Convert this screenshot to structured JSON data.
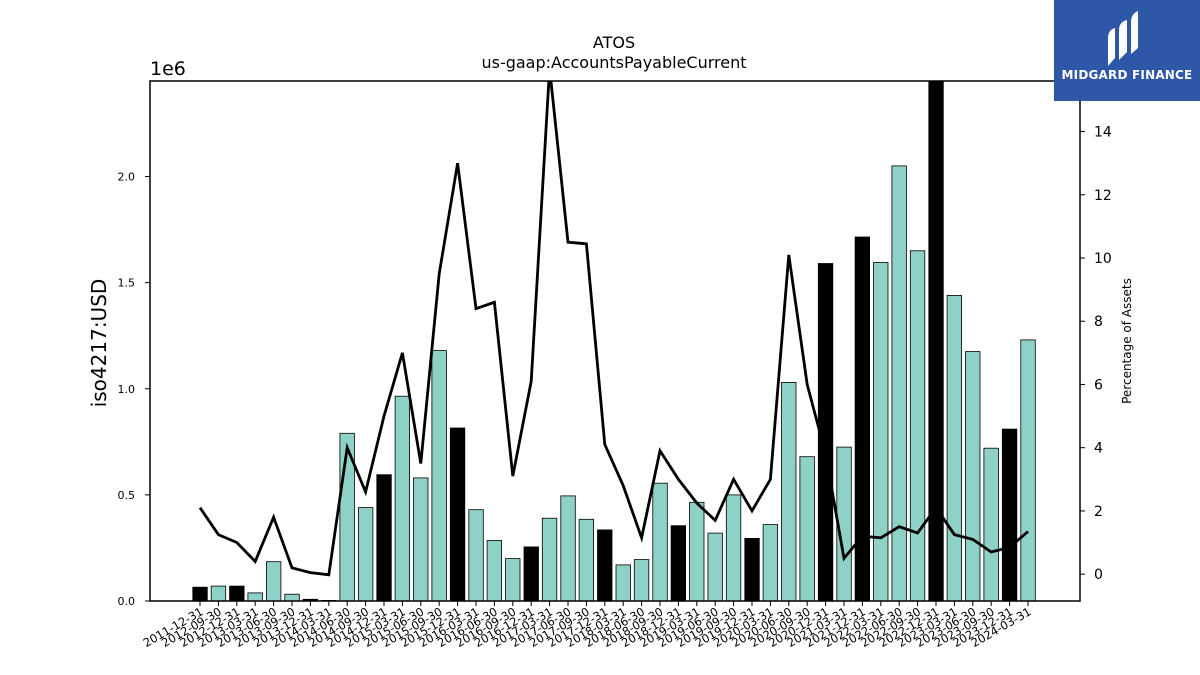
{
  "chart_data": {
    "type": "bar",
    "title": "ATOS",
    "subtitle": "us-gaap:AccountsPayableCurrent",
    "ylabel": "iso4217:USD",
    "y_offset_label": "1e6",
    "y2label": "Percentage of Assets",
    "ylim": [
      0,
      2450000
    ],
    "y2lim": [
      -0.85,
      15.6
    ],
    "yticks": [
      0.0,
      0.5,
      1.0,
      1.5,
      2.0
    ],
    "y2ticks": [
      0,
      2,
      4,
      6,
      8,
      10,
      12,
      14
    ],
    "categories": [
      "2011-12-31",
      "2012-09-30",
      "2012-12-31",
      "2013-03-31",
      "2013-06-30",
      "2013-09-30",
      "2013-12-31",
      "2014-03-31",
      "2014-06-30",
      "2014-09-30",
      "2014-12-31",
      "2015-03-31",
      "2015-06-30",
      "2015-09-30",
      "2015-12-31",
      "2016-03-31",
      "2016-06-30",
      "2016-09-30",
      "2016-12-31",
      "2017-03-31",
      "2017-06-30",
      "2017-09-30",
      "2017-12-31",
      "2018-03-31",
      "2018-06-30",
      "2018-09-30",
      "2018-12-31",
      "2019-03-31",
      "2019-06-30",
      "2019-09-30",
      "2019-12-31",
      "2020-03-31",
      "2020-06-30",
      "2020-09-30",
      "2020-12-31",
      "2021-03-31",
      "2021-12-31",
      "2022-03-31",
      "2022-06-30",
      "2022-09-30",
      "2022-12-31",
      "2023-03-31",
      "2023-06-30",
      "2023-09-30",
      "2023-12-31",
      "2024-03-31"
    ],
    "series": [
      {
        "values": [
          65000,
          70000,
          70000,
          38000,
          185000,
          32000,
          8000,
          3000,
          790000,
          440000,
          595000,
          965000,
          580000,
          1180000,
          815000,
          430000,
          285000,
          200000,
          255000,
          390000,
          495000,
          385000,
          335000,
          170000,
          195000,
          555000,
          355000,
          465000,
          320000,
          500000,
          295000,
          360000,
          1030000,
          680000,
          1590000,
          725000,
          1715000,
          1595000,
          2050000,
          1650000,
          2460000,
          1440000,
          1175000,
          720000,
          810000,
          1230000
        ],
        "colors": [
          "#000000",
          "#8ed1c6",
          "#000000",
          "#8ed1c6",
          "#8ed1c6",
          "#8ed1c6",
          "#000000",
          "#8ed1c6",
          "#8ed1c6",
          "#8ed1c6",
          "#000000",
          "#8ed1c6",
          "#8ed1c6",
          "#8ed1c6",
          "#000000",
          "#8ed1c6",
          "#8ed1c6",
          "#8ed1c6",
          "#000000",
          "#8ed1c6",
          "#8ed1c6",
          "#8ed1c6",
          "#000000",
          "#8ed1c6",
          "#8ed1c6",
          "#8ed1c6",
          "#000000",
          "#8ed1c6",
          "#8ed1c6",
          "#8ed1c6",
          "#000000",
          "#8ed1c6",
          "#8ed1c6",
          "#8ed1c6",
          "#000000",
          "#8ed1c6",
          "#000000",
          "#8ed1c6",
          "#8ed1c6",
          "#8ed1c6",
          "#000000",
          "#8ed1c6",
          "#8ed1c6",
          "#8ed1c6",
          "#000000",
          "#8ed1c6"
        ]
      },
      {
        "type": "line",
        "axis": "right",
        "color": "#000000",
        "values": [
          2.1,
          1.25,
          1.0,
          0.4,
          1.8,
          0.2,
          0.05,
          -0.02,
          4.0,
          2.6,
          5.0,
          7.0,
          3.5,
          9.5,
          13.0,
          8.4,
          8.6,
          3.1,
          6.1,
          16.0,
          10.5,
          10.45,
          4.1,
          2.8,
          1.15,
          3.9,
          3.0,
          2.25,
          1.7,
          3.0,
          2.0,
          3.0,
          10.1,
          6.0,
          3.8,
          0.5,
          1.2,
          1.15,
          1.5,
          1.3,
          2.1,
          1.25,
          1.1,
          0.7,
          0.85,
          1.35
        ]
      }
    ],
    "legend": "none",
    "grid": false
  },
  "brand": {
    "name": "MIDGARD FINANCE",
    "bg_color": "#2f57a8"
  }
}
